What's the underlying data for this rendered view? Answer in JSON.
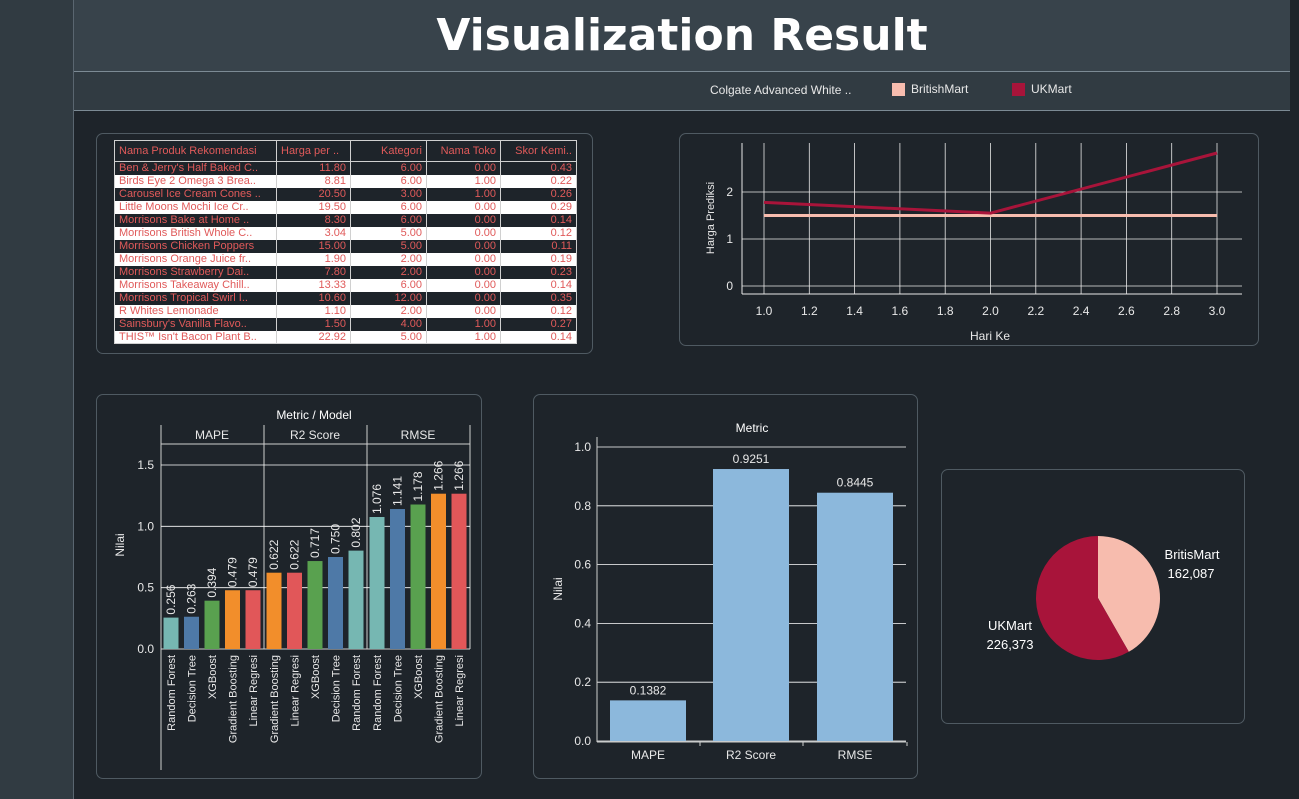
{
  "header": {
    "title": "Visualization Result"
  },
  "legend": {
    "filter_label": "Colgate Advanced White ..",
    "items": [
      {
        "label": "BritishMart",
        "color": "#f7bcae"
      },
      {
        "label": "UKMart",
        "color": "#a8143a"
      }
    ]
  },
  "table": {
    "headers": [
      "Nama Produk Rekomendasi",
      "Harga per ..",
      "Kategori",
      "Nama Toko",
      "Skor Kemi.."
    ],
    "rows": [
      [
        "Ben & Jerry's Half Baked C..",
        "11.80",
        "6.00",
        "0.00",
        "0.43"
      ],
      [
        "Birds Eye 2 Omega 3 Brea..",
        "8.81",
        "6.00",
        "1.00",
        "0.22"
      ],
      [
        "Carousel Ice Cream Cones ..",
        "20.50",
        "3.00",
        "1.00",
        "0.26"
      ],
      [
        "Little Moons Mochi Ice Cr..",
        "19.50",
        "6.00",
        "0.00",
        "0.29"
      ],
      [
        "Morrisons Bake at Home ..",
        "8.30",
        "6.00",
        "0.00",
        "0.14"
      ],
      [
        "Morrisons British Whole C..",
        "3.04",
        "5.00",
        "0.00",
        "0.12"
      ],
      [
        "Morrisons Chicken Poppers",
        "15.00",
        "5.00",
        "0.00",
        "0.11"
      ],
      [
        "Morrisons Orange Juice fr..",
        "1.90",
        "2.00",
        "0.00",
        "0.19"
      ],
      [
        "Morrisons Strawberry Dai..",
        "7.80",
        "2.00",
        "0.00",
        "0.23"
      ],
      [
        "Morrisons Takeaway Chill..",
        "13.33",
        "6.00",
        "0.00",
        "0.14"
      ],
      [
        "Morrisons Tropical Swirl I..",
        "10.60",
        "12.00",
        "0.00",
        "0.35"
      ],
      [
        "R Whites Lemonade",
        "1.10",
        "2.00",
        "0.00",
        "0.12"
      ],
      [
        "Sainsbury's Vanilla Flavo..",
        "1.50",
        "4.00",
        "1.00",
        "0.27"
      ],
      [
        "THIS™ Isn't Bacon Plant B..",
        "22.92",
        "5.00",
        "1.00",
        "0.14"
      ]
    ]
  },
  "chart_data": [
    {
      "type": "line",
      "title": "",
      "xlabel": "Hari Ke",
      "ylabel": "Harga Prediksi",
      "x": [
        1.0,
        2.0,
        3.0
      ],
      "xticks": [
        "1.0",
        "1.2",
        "1.4",
        "1.6",
        "1.8",
        "2.0",
        "2.2",
        "2.4",
        "2.6",
        "2.8",
        "3.0"
      ],
      "yticks": [
        "0",
        "1",
        "2"
      ],
      "xlim": [
        0.9,
        3.1
      ],
      "ylim": [
        0,
        2.4
      ],
      "grid": true,
      "series": [
        {
          "name": "BritishMart",
          "color": "#f7bcae",
          "values": [
            1.5,
            1.5,
            1.5
          ]
        },
        {
          "name": "UKMart",
          "color": "#a8143a",
          "values": [
            1.78,
            1.55,
            2.83
          ]
        }
      ]
    },
    {
      "type": "bar",
      "title": "Metric / Model",
      "ylabel": "Nilai",
      "ylim": [
        0,
        1.65
      ],
      "yticks": [
        "0.0",
        "0.5",
        "1.0",
        "1.5"
      ],
      "groups": [
        {
          "name": "MAPE",
          "bars": [
            {
              "label": "Random Forest",
              "value": 0.256,
              "display": "0.256",
              "color": "#76b7b2"
            },
            {
              "label": "Decision Tree",
              "value": 0.263,
              "display": "0.263",
              "color": "#4e79a7"
            },
            {
              "label": "XGBoost",
              "value": 0.394,
              "display": "0.394",
              "color": "#59a14f"
            },
            {
              "label": "Gradient Boosting",
              "value": 0.479,
              "display": "0.479",
              "color": "#f28e2b"
            },
            {
              "label": "Linear Regresi",
              "value": 0.479,
              "display": "0.479",
              "color": "#e15759"
            }
          ]
        },
        {
          "name": "R2 Score",
          "bars": [
            {
              "label": "Gradient Boosting",
              "value": 0.622,
              "display": "0.622",
              "color": "#f28e2b"
            },
            {
              "label": "Linear Regresi",
              "value": 0.622,
              "display": "0.622",
              "color": "#e15759"
            },
            {
              "label": "XGBoost",
              "value": 0.717,
              "display": "0.717",
              "color": "#59a14f"
            },
            {
              "label": "Decision Tree",
              "value": 0.75,
              "display": "0.750",
              "color": "#4e79a7"
            },
            {
              "label": "Random Forest",
              "value": 0.802,
              "display": "0.802",
              "color": "#76b7b2"
            }
          ]
        },
        {
          "name": "RMSE",
          "bars": [
            {
              "label": "Random Forest",
              "value": 1.076,
              "display": "1.076",
              "color": "#76b7b2"
            },
            {
              "label": "Decision Tree",
              "value": 1.141,
              "display": "1.141",
              "color": "#4e79a7"
            },
            {
              "label": "XGBoost",
              "value": 1.178,
              "display": "1.178",
              "color": "#59a14f"
            },
            {
              "label": "Gradient Boosting",
              "value": 1.266,
              "display": "1.266",
              "color": "#f28e2b"
            },
            {
              "label": "Linear Regresi",
              "value": 1.266,
              "display": "1.266",
              "color": "#e15759"
            }
          ]
        }
      ]
    },
    {
      "type": "bar",
      "title": "Metric",
      "ylabel": "Nilai",
      "categories": [
        "MAPE",
        "R2 Score",
        "RMSE"
      ],
      "values": [
        0.1382,
        0.9251,
        0.8445
      ],
      "labels": [
        "0.1382",
        "0.9251",
        "0.8445"
      ],
      "color": "#8cb8dc",
      "ylim": [
        0,
        1.04
      ],
      "yticks": [
        "0.0",
        "0.2",
        "0.4",
        "0.6",
        "0.8",
        "1.0"
      ]
    },
    {
      "type": "pie",
      "slices": [
        {
          "label": "BritisMart",
          "value": 162087,
          "display": "162,087",
          "color": "#f7bcae"
        },
        {
          "label": "UKMart",
          "value": 226373,
          "display": "226,373",
          "color": "#a8143a"
        }
      ]
    }
  ]
}
